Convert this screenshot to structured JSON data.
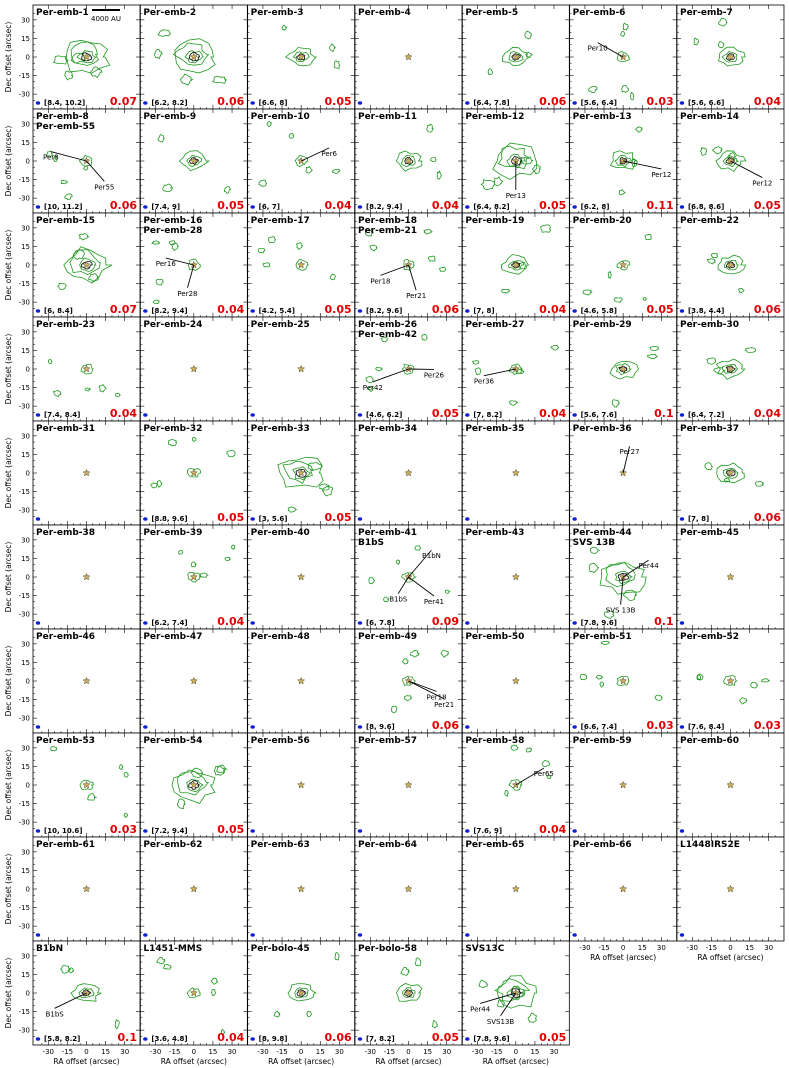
{
  "scale_bar_label": "4000 AU",
  "x_axis_label": "RA offset (arcsec)",
  "y_axis_label": "Dec offset (arcsec)",
  "x_tick_labels": [
    "-30",
    "-15",
    "0",
    "15",
    "30"
  ],
  "y_tick_labels": [
    "30",
    "15",
    "0",
    "-15",
    "-30"
  ],
  "colors": {
    "contour": "#1f9a1f",
    "fraction": "#e00000",
    "beam": "#1020d0",
    "star": "#c8b060"
  },
  "panels": [
    {
      "titles": [
        "Per-emb-1"
      ],
      "range": "[8.4, 10.2]",
      "fraction": "0.07",
      "emission": "strong",
      "labels": []
    },
    {
      "titles": [
        "Per-emb-2"
      ],
      "range": "[6.2, 8.2]",
      "fraction": "0.06",
      "emission": "strong",
      "labels": []
    },
    {
      "titles": [
        "Per-emb-3"
      ],
      "range": "[6.6, 8]",
      "fraction": "0.05",
      "emission": "medium",
      "labels": []
    },
    {
      "titles": [
        "Per-emb-4"
      ],
      "range": "",
      "fraction": "",
      "emission": "none",
      "labels": []
    },
    {
      "titles": [
        "Per-emb-5"
      ],
      "range": "[6.4, 7.8]",
      "fraction": "0.06",
      "emission": "medium",
      "labels": []
    },
    {
      "titles": [
        "Per-emb-6"
      ],
      "range": "[5.6, 6.4]",
      "fraction": "0.03",
      "emission": "weak",
      "labels": [
        {
          "text": "Per10",
          "x": -20,
          "y": 10
        }
      ]
    },
    {
      "titles": [
        "Per-emb-7"
      ],
      "range": "[5.6, 6.6]",
      "fraction": "0.04",
      "emission": "medium",
      "labels": []
    },
    {
      "titles": [
        "Per-emb-8",
        "Per-emb-55"
      ],
      "range": "[10, 11.2]",
      "fraction": "0.06",
      "emission": "weak",
      "labels": [
        {
          "text": "Per8",
          "x": -28,
          "y": 6
        },
        {
          "text": "Per55",
          "x": 14,
          "y": -18
        }
      ]
    },
    {
      "titles": [
        "Per-emb-9"
      ],
      "range": "[7.4, 9]",
      "fraction": "0.05",
      "emission": "medium",
      "labels": []
    },
    {
      "titles": [
        "Per-emb-10"
      ],
      "range": "[6, 7]",
      "fraction": "0.04",
      "emission": "weak",
      "labels": [
        {
          "text": "Per6",
          "x": 22,
          "y": 9
        }
      ]
    },
    {
      "titles": [
        "Per-emb-11"
      ],
      "range": "[8.2, 9.4]",
      "fraction": "0.04",
      "emission": "medium",
      "labels": []
    },
    {
      "titles": [
        "Per-emb-12"
      ],
      "range": "[6.4, 8.2]",
      "fraction": "0.05",
      "emission": "strong",
      "labels": [
        {
          "text": "Per13",
          "x": 0,
          "y": -25
        }
      ]
    },
    {
      "titles": [
        "Per-emb-13"
      ],
      "range": "[6.2, 8]",
      "fraction": "0.11",
      "emission": "medium",
      "labels": [
        {
          "text": "Per12",
          "x": 30,
          "y": -8
        }
      ]
    },
    {
      "titles": [
        "Per-emb-14"
      ],
      "range": "[6.8, 8.6]",
      "fraction": "0.05",
      "emission": "medium",
      "labels": [
        {
          "text": "Per12",
          "x": 25,
          "y": -15
        }
      ]
    },
    {
      "titles": [
        "Per-emb-15"
      ],
      "range": "[6, 8.4]",
      "fraction": "0.07",
      "emission": "strong",
      "labels": []
    },
    {
      "titles": [
        "Per-emb-16",
        "Per-emb-28"
      ],
      "range": "[8.2, 9.4]",
      "fraction": "0.04",
      "emission": "weak",
      "labels": [
        {
          "text": "Per16",
          "x": -22,
          "y": 4
        },
        {
          "text": "Per28",
          "x": -5,
          "y": -20
        }
      ]
    },
    {
      "titles": [
        "Per-emb-17"
      ],
      "range": "[4.2, 5.4]",
      "fraction": "0.05",
      "emission": "weak",
      "labels": []
    },
    {
      "titles": [
        "Per-emb-18",
        "Per-emb-21"
      ],
      "range": "[8.2, 9.6]",
      "fraction": "0.06",
      "emission": "weak",
      "labels": [
        {
          "text": "Per18",
          "x": -22,
          "y": -10
        },
        {
          "text": "Per21",
          "x": 6,
          "y": -22
        }
      ]
    },
    {
      "titles": [
        "Per-emb-19"
      ],
      "range": "[7, 8]",
      "fraction": "0.04",
      "emission": "medium",
      "labels": []
    },
    {
      "titles": [
        "Per-emb-20"
      ],
      "range": "[4.6, 5.8]",
      "fraction": "0.05",
      "emission": "weak",
      "labels": []
    },
    {
      "titles": [
        "Per-emb-22"
      ],
      "range": "[3.8, 4.4]",
      "fraction": "0.06",
      "emission": "medium",
      "labels": []
    },
    {
      "titles": [
        "Per-emb-23"
      ],
      "range": "[7.4, 8.4]",
      "fraction": "0.04",
      "emission": "weak",
      "labels": []
    },
    {
      "titles": [
        "Per-emb-24"
      ],
      "range": "",
      "fraction": "",
      "emission": "none",
      "labels": []
    },
    {
      "titles": [
        "Per-emb-25"
      ],
      "range": "",
      "fraction": "",
      "emission": "none",
      "labels": []
    },
    {
      "titles": [
        "Per-emb-26",
        "Per-emb-42"
      ],
      "range": "[4.6, 6.2]",
      "fraction": "0.05",
      "emission": "weak",
      "labels": [
        {
          "text": "Per42",
          "x": -28,
          "y": -12
        },
        {
          "text": "Per26",
          "x": 20,
          "y": -2
        }
      ]
    },
    {
      "titles": [
        "Per-emb-27"
      ],
      "range": "[7, 8.2]",
      "fraction": "0.04",
      "emission": "weak",
      "labels": [
        {
          "text": "Per36",
          "x": -25,
          "y": -7
        }
      ]
    },
    {
      "titles": [
        "Per-emb-29"
      ],
      "range": "[5.6, 7.6]",
      "fraction": "0.1",
      "emission": "medium",
      "labels": []
    },
    {
      "titles": [
        "Per-emb-30"
      ],
      "range": "[6.4, 7.2]",
      "fraction": "0.04",
      "emission": "medium",
      "labels": []
    },
    {
      "titles": [
        "Per-emb-31"
      ],
      "range": "",
      "fraction": "",
      "emission": "none",
      "labels": []
    },
    {
      "titles": [
        "Per-emb-32"
      ],
      "range": "[8.8, 9.6]",
      "fraction": "0.05",
      "emission": "weak",
      "labels": []
    },
    {
      "titles": [
        "Per-emb-33"
      ],
      "range": "[3, 5.6]",
      "fraction": "0.05",
      "emission": "strong",
      "labels": []
    },
    {
      "titles": [
        "Per-emb-34"
      ],
      "range": "",
      "fraction": "",
      "emission": "none",
      "labels": []
    },
    {
      "titles": [
        "Per-emb-35"
      ],
      "range": "",
      "fraction": "",
      "emission": "none",
      "labels": []
    },
    {
      "titles": [
        "Per-emb-36"
      ],
      "range": "",
      "fraction": "",
      "emission": "none",
      "labels": [
        {
          "text": "Per27",
          "x": 5,
          "y": 20
        }
      ]
    },
    {
      "titles": [
        "Per-emb-37"
      ],
      "range": "[7, 8]",
      "fraction": "0.06",
      "emission": "medium",
      "labels": []
    },
    {
      "titles": [
        "Per-emb-38"
      ],
      "range": "",
      "fraction": "",
      "emission": "none",
      "labels": []
    },
    {
      "titles": [
        "Per-emb-39"
      ],
      "range": "[6.2, 7.4]",
      "fraction": "0.04",
      "emission": "weak",
      "labels": []
    },
    {
      "titles": [
        "Per-emb-40"
      ],
      "range": "",
      "fraction": "",
      "emission": "none",
      "labels": []
    },
    {
      "titles": [
        "Per-emb-41",
        "B1bS"
      ],
      "range": "[6, 7.8]",
      "fraction": "0.09",
      "emission": "weak",
      "labels": [
        {
          "text": "B1bN",
          "x": 18,
          "y": 20
        },
        {
          "text": "B1bS",
          "x": -8,
          "y": -15
        },
        {
          "text": "Per41",
          "x": 20,
          "y": -17
        }
      ]
    },
    {
      "titles": [
        "Per-emb-43"
      ],
      "range": "",
      "fraction": "",
      "emission": "none",
      "labels": []
    },
    {
      "titles": [
        "Per-emb-44",
        "SVS 13B"
      ],
      "range": "[7.8, 9.6]",
      "fraction": "0.1",
      "emission": "strong",
      "labels": [
        {
          "text": "Per44",
          "x": 20,
          "y": 12
        },
        {
          "text": "SVS 13B",
          "x": -2,
          "y": -24
        }
      ]
    },
    {
      "titles": [
        "Per-emb-45"
      ],
      "range": "",
      "fraction": "",
      "emission": "none",
      "labels": []
    },
    {
      "titles": [
        "Per-emb-46"
      ],
      "range": "",
      "fraction": "",
      "emission": "none",
      "labels": []
    },
    {
      "titles": [
        "Per-emb-47"
      ],
      "range": "",
      "fraction": "",
      "emission": "none",
      "labels": []
    },
    {
      "titles": [
        "Per-emb-48"
      ],
      "range": "",
      "fraction": "",
      "emission": "none",
      "labels": []
    },
    {
      "titles": [
        "Per-emb-49"
      ],
      "range": "[8, 9.6]",
      "fraction": "0.06",
      "emission": "weak",
      "labels": [
        {
          "text": "Per18",
          "x": 22,
          "y": -10
        },
        {
          "text": "Per21",
          "x": 28,
          "y": -16
        }
      ]
    },
    {
      "titles": [
        "Per-emb-50"
      ],
      "range": "",
      "fraction": "",
      "emission": "none",
      "labels": []
    },
    {
      "titles": [
        "Per-emb-51"
      ],
      "range": "[6.6, 7.4]",
      "fraction": "0.03",
      "emission": "weak",
      "labels": []
    },
    {
      "titles": [
        "Per-emb-52"
      ],
      "range": "[7.6, 8.4]",
      "fraction": "0.03",
      "emission": "weak",
      "labels": []
    },
    {
      "titles": [
        "Per-emb-53"
      ],
      "range": "[10, 10.6]",
      "fraction": "0.03",
      "emission": "weak",
      "labels": []
    },
    {
      "titles": [
        "Per-emb-54"
      ],
      "range": "[7.2, 9.4]",
      "fraction": "0.05",
      "emission": "strong",
      "labels": []
    },
    {
      "titles": [
        "Per-emb-56"
      ],
      "range": "",
      "fraction": "",
      "emission": "none",
      "labels": []
    },
    {
      "titles": [
        "Per-emb-57"
      ],
      "range": "",
      "fraction": "",
      "emission": "none",
      "labels": []
    },
    {
      "titles": [
        "Per-emb-58"
      ],
      "range": "[7.6, 9]",
      "fraction": "0.04",
      "emission": "weak",
      "labels": [
        {
          "text": "Per65",
          "x": 22,
          "y": 12
        }
      ]
    },
    {
      "titles": [
        "Per-emb-59"
      ],
      "range": "",
      "fraction": "",
      "emission": "none",
      "labels": []
    },
    {
      "titles": [
        "Per-emb-60"
      ],
      "range": "",
      "fraction": "",
      "emission": "none",
      "labels": []
    },
    {
      "titles": [
        "Per-emb-61"
      ],
      "range": "",
      "fraction": "",
      "emission": "none",
      "labels": []
    },
    {
      "titles": [
        "Per-emb-62"
      ],
      "range": "",
      "fraction": "",
      "emission": "none",
      "labels": []
    },
    {
      "titles": [
        "Per-emb-63"
      ],
      "range": "",
      "fraction": "",
      "emission": "none",
      "labels": []
    },
    {
      "titles": [
        "Per-emb-64"
      ],
      "range": "",
      "fraction": "",
      "emission": "none",
      "labels": []
    },
    {
      "titles": [
        "Per-emb-65"
      ],
      "range": "",
      "fraction": "",
      "emission": "none",
      "labels": []
    },
    {
      "titles": [
        "Per-emb-66"
      ],
      "range": "",
      "fraction": "",
      "emission": "none",
      "labels": []
    },
    {
      "titles": [
        "L1448IRS2E"
      ],
      "range": "",
      "fraction": "",
      "emission": "none",
      "labels": []
    },
    {
      "titles": [
        "B1bN"
      ],
      "range": "[5.8, 8.2]",
      "fraction": "0.1",
      "emission": "medium",
      "labels": [
        {
          "text": "B1bS",
          "x": -25,
          "y": -14
        }
      ]
    },
    {
      "titles": [
        "L1451-MMS"
      ],
      "range": "[3.6, 4.8]",
      "fraction": "0.04",
      "emission": "weak",
      "labels": []
    },
    {
      "titles": [
        "Per-bolo-45"
      ],
      "range": "[8, 9.8]",
      "fraction": "0.06",
      "emission": "medium",
      "labels": []
    },
    {
      "titles": [
        "Per-bolo-58"
      ],
      "range": "[7, 8.2]",
      "fraction": "0.05",
      "emission": "medium",
      "labels": []
    },
    {
      "titles": [
        "SVS13C"
      ],
      "range": "[7.8, 9.6]",
      "fraction": "0.05",
      "emission": "strong",
      "labels": [
        {
          "text": "Per44",
          "x": -28,
          "y": -10
        },
        {
          "text": "SVS13B",
          "x": -12,
          "y": -20
        }
      ]
    }
  ]
}
